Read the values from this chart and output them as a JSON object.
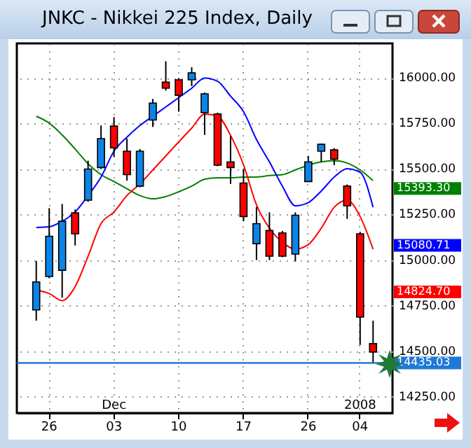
{
  "chart_data": {
    "type": "candlestick",
    "title": "JNKC - Nikkei 225 Index, Daily",
    "categories": [
      null,
      "26",
      null,
      null,
      null,
      null,
      "03",
      null,
      null,
      null,
      null,
      "10",
      null,
      null,
      null,
      null,
      "17",
      null,
      null,
      null,
      null,
      "26",
      null,
      null,
      null,
      "04",
      null
    ],
    "ohlc": [
      [
        14726,
        14995,
        14667,
        14880
      ],
      [
        14910,
        15285,
        14900,
        15131
      ],
      [
        14944,
        15308,
        14793,
        15213
      ],
      [
        15259,
        15277,
        15080,
        15144
      ],
      [
        15329,
        15546,
        15320,
        15500
      ],
      [
        15508,
        15739,
        15500,
        15667
      ],
      [
        15736,
        15785,
        15567,
        15616
      ],
      [
        15598,
        15667,
        15436,
        15469
      ],
      [
        15406,
        15610,
        15400,
        15598
      ],
      [
        15769,
        15885,
        15731,
        15862
      ],
      [
        15977,
        16092,
        15931,
        15944
      ],
      [
        15990,
        16000,
        15815,
        15905
      ],
      [
        15990,
        16059,
        15956,
        16028
      ],
      [
        15810,
        15920,
        15687,
        15913
      ],
      [
        15802,
        15810,
        15515,
        15521
      ],
      [
        15539,
        15682,
        15418,
        15508
      ],
      [
        15423,
        15502,
        15213,
        15239
      ],
      [
        15090,
        15292,
        15000,
        15200
      ],
      [
        15162,
        15262,
        15000,
        15021
      ],
      [
        15149,
        15160,
        15016,
        15021
      ],
      [
        15033,
        15262,
        14993,
        15246
      ],
      [
        15431,
        15572,
        15431,
        15539
      ],
      [
        15598,
        15640,
        15539,
        15636
      ],
      [
        15605,
        15615,
        15521,
        15554
      ],
      [
        15406,
        15415,
        15226,
        15298
      ],
      [
        15144,
        15155,
        14534,
        14687
      ],
      [
        14541,
        14667,
        14437,
        14495
      ]
    ],
    "colors": [
      "#0b84e8",
      "#0b84e8",
      "#0b84e8",
      "#ff0000",
      "#0b84e8",
      "#0b84e8",
      "#ff0000",
      "#ff0000",
      "#0b84e8",
      "#0b84e8",
      "#ff0000",
      "#ff0000",
      "#0b84e8",
      "#0b84e8",
      "#ff0000",
      "#ff0000",
      "#ff0000",
      "#0b84e8",
      "#ff0000",
      "#ff0000",
      "#0b84e8",
      "#0b84e8",
      "#0b84e8",
      "#ff0000",
      "#ff0000",
      "#ff0000",
      "#ff0000"
    ],
    "series": [
      {
        "type": "line",
        "color": "#008000",
        "values": [
          15790,
          15752,
          15687,
          15610,
          15529,
          15469,
          15431,
          15392,
          15354,
          15336,
          15349,
          15375,
          15406,
          15444,
          15452,
          15452,
          15456,
          15456,
          15464,
          15469,
          15495,
          15521,
          15539,
          15546,
          15533,
          15495,
          15436
        ]
      },
      {
        "type": "line",
        "color": "#0000ff",
        "values": [
          15179,
          15183,
          15213,
          15264,
          15354,
          15456,
          15598,
          15675,
          15739,
          15790,
          15841,
          15892,
          15944,
          16000,
          15982,
          15900,
          15815,
          15662,
          15539,
          15406,
          15298,
          15316,
          15379,
          15456,
          15502,
          15482,
          15290
        ]
      },
      {
        "type": "line",
        "color": "#ff0000",
        "values": [
          14837,
          14816,
          14777,
          14854,
          15021,
          15200,
          15264,
          15354,
          15418,
          15495,
          15572,
          15649,
          15725,
          15802,
          15790,
          15685,
          15523,
          15303,
          15175,
          15098,
          15060,
          15085,
          15175,
          15290,
          15329,
          15239,
          15060
        ]
      }
    ],
    "ylim": [
      14160,
      16190
    ],
    "yticks": [
      {
        "value": 14250,
        "label": "14250.00"
      },
      {
        "value": 14500,
        "label": "14500.00"
      },
      {
        "value": 14750,
        "label": "14750.00"
      },
      {
        "value": 15000,
        "label": "15000.00"
      },
      {
        "value": 15250,
        "label": "15250.00"
      },
      {
        "value": 15500,
        "label": "15500.00"
      },
      {
        "value": 15750,
        "label": "15750.00"
      },
      {
        "value": 16000,
        "label": "16000.00"
      }
    ],
    "ref_lines": [
      {
        "axis": "y",
        "value": 14435.03,
        "label": "14435.03",
        "color": "#1e78d7"
      }
    ],
    "annotations": [
      "15393.30",
      "15080.71",
      "14824.70",
      "Dec",
      "2008"
    ],
    "grid": true
  }
}
